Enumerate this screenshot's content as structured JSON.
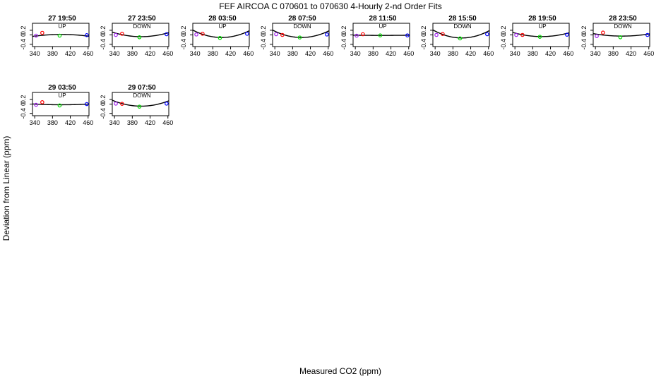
{
  "title": "FEF   AIRCOA C   070601 to 070630   4-Hourly 2-nd Order Fits",
  "xlabel": "Measured CO2 (ppm)",
  "ylabel": "Deviation from Linear (ppm)",
  "colors": {
    "red": "#ff0000",
    "green": "#00dd00",
    "blue": "#0000ff",
    "purple": "#a020f0",
    "fit": "#000000"
  },
  "chart_data": [
    {
      "type": "scatter",
      "title": "27 19:50",
      "subtitle": "UP",
      "xlim": [
        335,
        462
      ],
      "ylim": [
        -0.5,
        0.5
      ],
      "xticks": [
        340,
        380,
        420,
        460
      ],
      "xtick_labels": [
        "340",
        "380",
        "420",
        "460"
      ],
      "yticks": [
        -0.4,
        0,
        0.2
      ],
      "ytick_labels": [
        "-0.4",
        "0",
        "0.2"
      ],
      "points": [
        {
          "x": 343,
          "y": -0.03,
          "color": "purple"
        },
        {
          "x": 357,
          "y": 0.09,
          "color": "red"
        },
        {
          "x": 396,
          "y": -0.03,
          "color": "green"
        },
        {
          "x": 457,
          "y": -0.01,
          "color": "blue"
        }
      ],
      "fit": [
        0.02,
        0,
        -2e-05
      ]
    },
    {
      "type": "scatter",
      "title": "27 23:50",
      "subtitle": "DOWN",
      "xlim": [
        335,
        462
      ],
      "ylim": [
        -0.5,
        0.5
      ],
      "xticks": [
        340,
        380,
        420,
        460
      ],
      "xtick_labels": [
        "340",
        "380",
        "420",
        "460"
      ],
      "yticks": [
        -0.4,
        0,
        0.2
      ],
      "ytick_labels": [
        "-0.4",
        "0",
        "0.2"
      ],
      "points": [
        {
          "x": 343,
          "y": 0.0,
          "color": "purple"
        },
        {
          "x": 357,
          "y": 0.05,
          "color": "red"
        },
        {
          "x": 396,
          "y": -0.1,
          "color": "green"
        },
        {
          "x": 457,
          "y": 0.03,
          "color": "blue"
        }
      ],
      "fit": [
        -0.075,
        0,
        4.6e-05
      ]
    },
    {
      "type": "scatter",
      "title": "28 03:50",
      "subtitle": "UP",
      "xlim": [
        335,
        462
      ],
      "ylim": [
        -0.5,
        0.5
      ],
      "xticks": [
        340,
        380,
        420,
        460
      ],
      "xtick_labels": [
        "340",
        "380",
        "420",
        "460"
      ],
      "yticks": [
        -0.4,
        0,
        0.2
      ],
      "ytick_labels": [
        "-0.4",
        "0",
        "0.2"
      ],
      "points": [
        {
          "x": 343,
          "y": 0.02,
          "color": "purple"
        },
        {
          "x": 357,
          "y": 0.05,
          "color": "red"
        },
        {
          "x": 396,
          "y": -0.13,
          "color": "green"
        },
        {
          "x": 457,
          "y": 0.05,
          "color": "blue"
        }
      ],
      "fit": [
        -0.11,
        0,
        7.5e-05
      ]
    },
    {
      "type": "scatter",
      "title": "28 07:50",
      "subtitle": "DOWN",
      "xlim": [
        335,
        462
      ],
      "ylim": [
        -0.5,
        0.5
      ],
      "xticks": [
        340,
        380,
        420,
        460
      ],
      "xtick_labels": [
        "340",
        "380",
        "420",
        "460"
      ],
      "yticks": [
        -0.4,
        0,
        0.2
      ],
      "ytick_labels": [
        "-0.4",
        "0",
        "0.2"
      ],
      "points": [
        {
          "x": 343,
          "y": 0.03,
          "color": "purple"
        },
        {
          "x": 357,
          "y": 0.0,
          "color": "red"
        },
        {
          "x": 396,
          "y": -0.11,
          "color": "green"
        },
        {
          "x": 457,
          "y": 0.02,
          "color": "blue"
        }
      ],
      "fit": [
        -0.11,
        0,
        7.5e-05
      ]
    },
    {
      "type": "scatter",
      "title": "28 11:50",
      "subtitle": "UP",
      "xlim": [
        335,
        462
      ],
      "ylim": [
        -0.5,
        0.5
      ],
      "xticks": [
        340,
        380,
        420,
        460
      ],
      "xtick_labels": [
        "340",
        "380",
        "420",
        "460"
      ],
      "yticks": [
        -0.4,
        0,
        0.2
      ],
      "ytick_labels": [
        "-0.4",
        "0",
        "0.2"
      ],
      "points": [
        {
          "x": 343,
          "y": -0.03,
          "color": "purple"
        },
        {
          "x": 357,
          "y": 0.03,
          "color": "red"
        },
        {
          "x": 396,
          "y": -0.02,
          "color": "green"
        },
        {
          "x": 457,
          "y": -0.02,
          "color": "blue"
        }
      ],
      "fit": [
        -0.02,
        0,
        2e-06
      ]
    },
    {
      "type": "scatter",
      "title": "28 15:50",
      "subtitle": "DOWN",
      "xlim": [
        335,
        462
      ],
      "ylim": [
        -0.5,
        0.5
      ],
      "xticks": [
        340,
        380,
        420,
        460
      ],
      "xtick_labels": [
        "340",
        "380",
        "420",
        "460"
      ],
      "yticks": [
        -0.4,
        0,
        0.2
      ],
      "ytick_labels": [
        "-0.4",
        "0",
        "0.2"
      ],
      "points": [
        {
          "x": 343,
          "y": 0.0,
          "color": "purple"
        },
        {
          "x": 357,
          "y": 0.04,
          "color": "red"
        },
        {
          "x": 396,
          "y": -0.15,
          "color": "green"
        },
        {
          "x": 457,
          "y": 0.03,
          "color": "blue"
        }
      ],
      "fit": [
        -0.13,
        0,
        8.2e-05
      ]
    },
    {
      "type": "scatter",
      "title": "28 19:50",
      "subtitle": "UP",
      "xlim": [
        335,
        462
      ],
      "ylim": [
        -0.5,
        0.5
      ],
      "xticks": [
        340,
        380,
        420,
        460
      ],
      "xtick_labels": [
        "340",
        "380",
        "420",
        "460"
      ],
      "yticks": [
        -0.4,
        0,
        0.2
      ],
      "ytick_labels": [
        "-0.4",
        "0",
        "0.2"
      ],
      "points": [
        {
          "x": 343,
          "y": 0.0,
          "color": "purple"
        },
        {
          "x": 357,
          "y": 0.0,
          "color": "red"
        },
        {
          "x": 396,
          "y": -0.08,
          "color": "green"
        },
        {
          "x": 457,
          "y": 0.01,
          "color": "blue"
        }
      ],
      "fit": [
        -0.07,
        0,
        4.2e-05
      ]
    },
    {
      "type": "scatter",
      "title": "28 23:50",
      "subtitle": "DOWN",
      "xlim": [
        335,
        462
      ],
      "ylim": [
        -0.5,
        0.5
      ],
      "xticks": [
        340,
        380,
        420,
        460
      ],
      "xtick_labels": [
        "340",
        "380",
        "420",
        "460"
      ],
      "yticks": [
        -0.4,
        0,
        0.2
      ],
      "ytick_labels": [
        "-0.4",
        "0",
        "0.2"
      ],
      "points": [
        {
          "x": 343,
          "y": -0.05,
          "color": "purple"
        },
        {
          "x": 357,
          "y": 0.1,
          "color": "red"
        },
        {
          "x": 396,
          "y": -0.1,
          "color": "green"
        },
        {
          "x": 457,
          "y": 0.0,
          "color": "blue"
        }
      ],
      "fit": [
        -0.05,
        0,
        2.5e-05
      ]
    },
    {
      "type": "scatter",
      "title": "29 03:50",
      "subtitle": "UP",
      "xlim": [
        335,
        462
      ],
      "ylim": [
        -0.5,
        0.5
      ],
      "xticks": [
        340,
        380,
        420,
        460
      ],
      "xtick_labels": [
        "340",
        "380",
        "420",
        "460"
      ],
      "yticks": [
        -0.4,
        0,
        0.2
      ],
      "ytick_labels": [
        "-0.4",
        "0",
        "0.2"
      ],
      "points": [
        {
          "x": 343,
          "y": -0.03,
          "color": "purple"
        },
        {
          "x": 357,
          "y": 0.08,
          "color": "red"
        },
        {
          "x": 396,
          "y": -0.06,
          "color": "green"
        },
        {
          "x": 457,
          "y": 0.0,
          "color": "blue"
        }
      ],
      "fit": [
        -0.03,
        0,
        8e-06
      ]
    },
    {
      "type": "scatter",
      "title": "29 07:50",
      "subtitle": "DOWN",
      "xlim": [
        335,
        462
      ],
      "ylim": [
        -0.5,
        0.5
      ],
      "xticks": [
        340,
        380,
        420,
        460
      ],
      "xtick_labels": [
        "340",
        "380",
        "420",
        "460"
      ],
      "yticks": [
        -0.4,
        0,
        0.2
      ],
      "ytick_labels": [
        "-0.4",
        "0",
        "0.2"
      ],
      "points": [
        {
          "x": 343,
          "y": 0.02,
          "color": "purple"
        },
        {
          "x": 357,
          "y": 0.01,
          "color": "red"
        },
        {
          "x": 396,
          "y": -0.11,
          "color": "green"
        },
        {
          "x": 457,
          "y": 0.02,
          "color": "blue"
        }
      ],
      "fit": [
        -0.09,
        0,
        6e-05
      ]
    }
  ]
}
